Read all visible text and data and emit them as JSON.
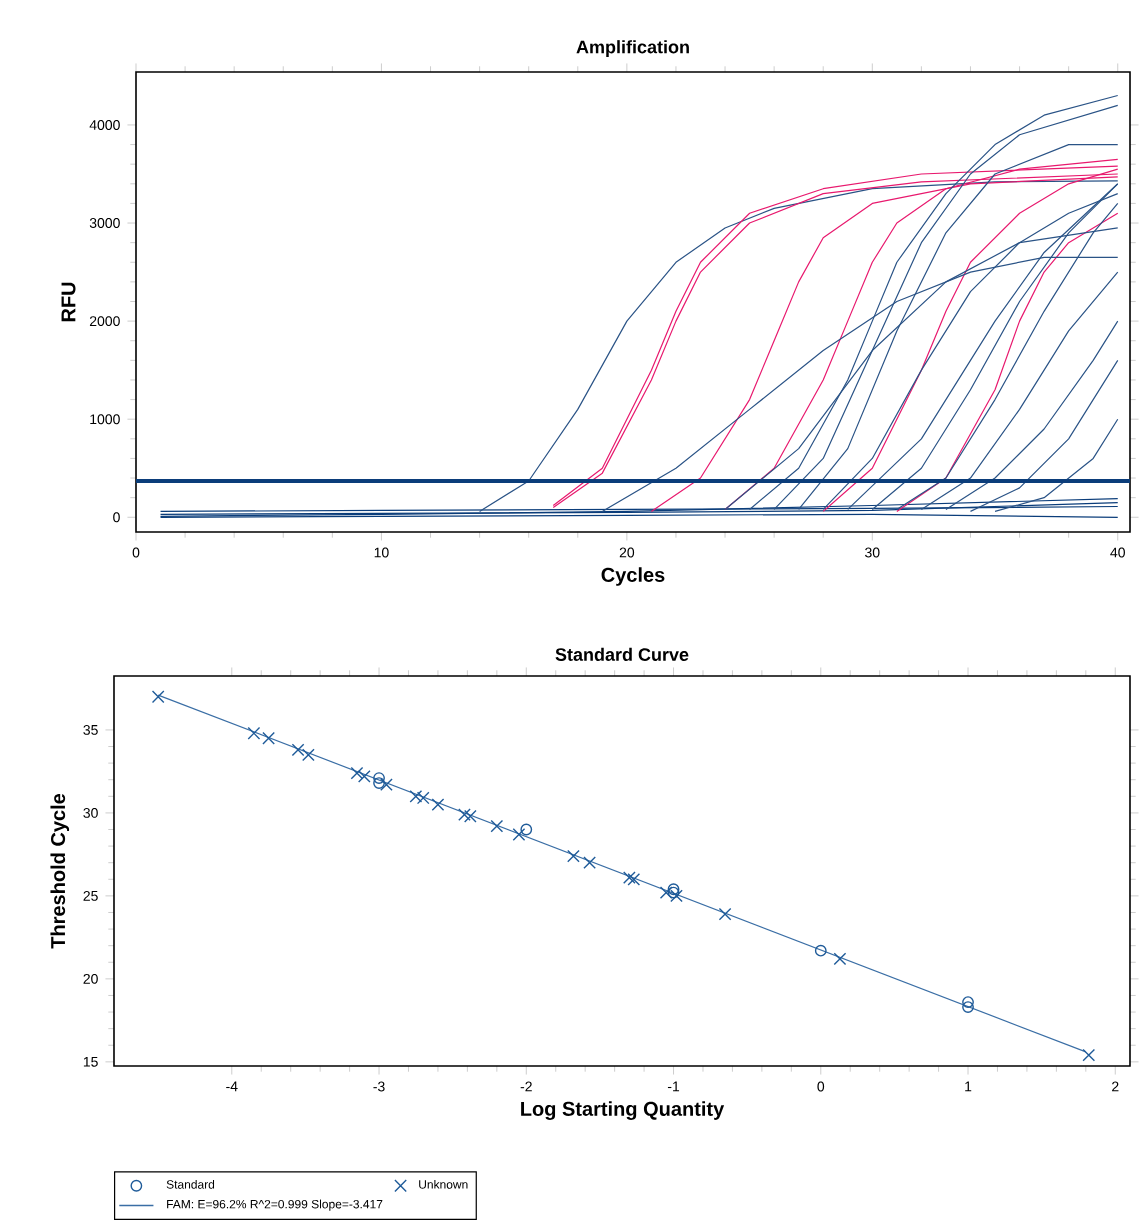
{
  "chart_data": [
    {
      "type": "line",
      "title": "Amplification",
      "xlabel": "Cycles",
      "ylabel": "RFU",
      "xlim": [
        0,
        40.5
      ],
      "ylim": [
        -150,
        4540
      ],
      "xticks": [
        0,
        10,
        20,
        30,
        40
      ],
      "yticks": [
        0,
        1000,
        2000,
        3000,
        4000
      ],
      "marker": "none",
      "ref_lines": [
        {
          "axis": "y",
          "value": 370,
          "color": "#0b3d7a"
        }
      ],
      "series": [
        {
          "color": "#0b3d7a",
          "x": [
            1,
            10,
            20,
            30,
            40
          ],
          "values": [
            60,
            70,
            80,
            90,
            110
          ]
        },
        {
          "color": "#0b3d7a",
          "x": [
            1,
            10,
            20,
            30,
            40
          ],
          "values": [
            10,
            30,
            60,
            120,
            190
          ]
        },
        {
          "color": "#0b3d7a",
          "x": [
            1,
            10,
            20,
            30,
            40
          ],
          "values": [
            30,
            40,
            50,
            70,
            150
          ]
        },
        {
          "color": "#0b3d7a",
          "x": [
            1,
            10,
            20,
            30,
            40
          ],
          "values": [
            0,
            10,
            20,
            30,
            0
          ]
        },
        {
          "color": "#2a5386",
          "x": [
            14,
            16,
            18,
            20,
            22,
            24,
            26,
            30,
            35,
            40
          ],
          "values": [
            60,
            370,
            1100,
            2000,
            2600,
            2950,
            3150,
            3350,
            3420,
            3430
          ]
        },
        {
          "color": "#e8196e",
          "x": [
            17,
            19,
            21,
            22,
            23,
            25,
            28,
            32,
            40
          ],
          "values": [
            120,
            500,
            1500,
            2100,
            2600,
            3100,
            3350,
            3500,
            3580
          ]
        },
        {
          "color": "#e8196e",
          "x": [
            17,
            19,
            21,
            22,
            23,
            25,
            28,
            32,
            40
          ],
          "values": [
            100,
            450,
            1400,
            2000,
            2500,
            3000,
            3300,
            3420,
            3500
          ]
        },
        {
          "color": "#e8196e",
          "x": [
            21,
            23,
            25,
            26,
            27,
            28,
            30,
            34,
            40
          ],
          "values": [
            60,
            400,
            1200,
            1800,
            2400,
            2850,
            3200,
            3400,
            3470
          ]
        },
        {
          "color": "#e8196e",
          "x": [
            24,
            26,
            28,
            29,
            30,
            31,
            33,
            36,
            40
          ],
          "values": [
            80,
            500,
            1400,
            2000,
            2600,
            3000,
            3350,
            3550,
            3650
          ]
        },
        {
          "color": "#e8196e",
          "x": [
            28,
            30,
            32,
            33,
            34,
            36,
            38,
            40
          ],
          "values": [
            60,
            500,
            1500,
            2100,
            2600,
            3100,
            3400,
            3550
          ]
        },
        {
          "color": "#e8196e",
          "x": [
            31,
            33,
            35,
            36,
            37,
            38,
            40
          ],
          "values": [
            60,
            400,
            1300,
            2000,
            2500,
            2800,
            3100
          ]
        },
        {
          "color": "#2a5386",
          "x": [
            19,
            22,
            25,
            28,
            31,
            34,
            37,
            40
          ],
          "values": [
            60,
            500,
            1100,
            1700,
            2200,
            2500,
            2650,
            2650
          ]
        },
        {
          "color": "#2a5386",
          "x": [
            25,
            27,
            29,
            30,
            31,
            33,
            35,
            37,
            40
          ],
          "values": [
            80,
            500,
            1400,
            2000,
            2600,
            3300,
            3800,
            4100,
            4300
          ]
        },
        {
          "color": "#2a5386",
          "x": [
            26,
            28,
            30,
            32,
            34,
            36,
            40
          ],
          "values": [
            80,
            600,
            1700,
            2800,
            3500,
            3900,
            4200
          ]
        },
        {
          "color": "#2a5386",
          "x": [
            27,
            29,
            31,
            33,
            35,
            38,
            40
          ],
          "values": [
            80,
            700,
            1900,
            2900,
            3500,
            3800,
            3800
          ]
        },
        {
          "color": "#2a5386",
          "x": [
            24,
            27,
            30,
            33,
            36,
            40
          ],
          "values": [
            80,
            700,
            1700,
            2400,
            2800,
            2950
          ]
        },
        {
          "color": "#2a5386",
          "x": [
            28,
            30,
            32,
            34,
            36,
            38,
            40
          ],
          "values": [
            80,
            600,
            1500,
            2300,
            2800,
            3100,
            3300
          ]
        },
        {
          "color": "#2a5386",
          "x": [
            30,
            32,
            34,
            36,
            38,
            40
          ],
          "values": [
            80,
            500,
            1300,
            2200,
            2900,
            3400
          ]
        },
        {
          "color": "#2a5386",
          "x": [
            31,
            33,
            35,
            37,
            39,
            40
          ],
          "values": [
            80,
            400,
            1200,
            2100,
            2900,
            3200
          ]
        },
        {
          "color": "#2a5386",
          "x": [
            32,
            34,
            36,
            38,
            40
          ],
          "values": [
            80,
            400,
            1100,
            1900,
            2500
          ]
        },
        {
          "color": "#2a5386",
          "x": [
            33,
            35,
            37,
            39,
            40
          ],
          "values": [
            80,
            400,
            900,
            1600,
            2000
          ]
        },
        {
          "color": "#2a5386",
          "x": [
            34,
            36,
            38,
            40
          ],
          "values": [
            60,
            300,
            800,
            1600
          ]
        },
        {
          "color": "#2a5386",
          "x": [
            35,
            37,
            39,
            40
          ],
          "values": [
            60,
            200,
            600,
            1000
          ]
        },
        {
          "color": "#2a5386",
          "x": [
            29,
            32,
            35,
            37,
            40
          ],
          "values": [
            80,
            800,
            2000,
            2700,
            3400
          ]
        }
      ]
    },
    {
      "type": "scatter",
      "title": "Standard Curve",
      "xlabel": "Log Starting Quantity",
      "ylabel": "Threshold Cycle",
      "xlim": [
        -4.8,
        2.1
      ],
      "ylim": [
        14.75,
        38.25
      ],
      "xticks": [
        -4,
        -3,
        -2,
        -1,
        0,
        1,
        2
      ],
      "yticks": [
        15,
        20,
        25,
        30,
        35
      ],
      "legend": "bottom",
      "series": [
        {
          "name": "Standard",
          "type": "scatter",
          "marker": "circle",
          "color": "#1f5b99",
          "x": [
            -3,
            -3,
            -2,
            -1,
            -1,
            0,
            1,
            1
          ],
          "values": [
            31.8,
            32.1,
            29.0,
            25.2,
            25.4,
            21.7,
            18.3,
            18.6
          ]
        },
        {
          "name": "Unknown",
          "type": "scatter",
          "marker": "cross",
          "color": "#1f5b99",
          "x": [
            -4.5,
            -3.85,
            -3.75,
            -3.55,
            -3.48,
            -3.15,
            -3.1,
            -2.95,
            -2.75,
            -2.7,
            -2.6,
            -2.42,
            -2.38,
            -2.2,
            -2.05,
            -1.68,
            -1.57,
            -1.3,
            -1.27,
            -1.05,
            -0.98,
            -0.65,
            0.13,
            1.82
          ],
          "values": [
            37.0,
            34.8,
            34.5,
            33.8,
            33.5,
            32.4,
            32.2,
            31.7,
            31.0,
            30.9,
            30.5,
            29.9,
            29.8,
            29.2,
            28.7,
            27.4,
            27.0,
            26.1,
            26.0,
            25.2,
            25.0,
            23.9,
            21.2,
            15.4
          ]
        },
        {
          "name": "FAM: E=96.2% R^2=0.999 Slope=-3.417",
          "type": "line",
          "marker": "none",
          "color": "#3a6ea5",
          "x": [
            -4.5,
            1.8
          ],
          "values": [
            37.1,
            15.6
          ]
        }
      ]
    }
  ]
}
